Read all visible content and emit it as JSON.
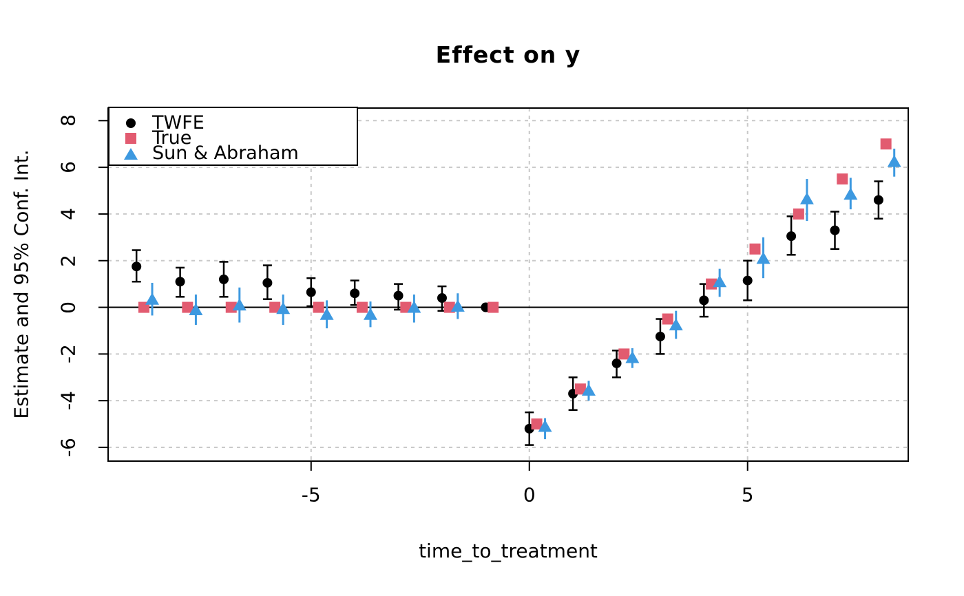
{
  "title": "Effect on y",
  "colors": {
    "grid": "#c9c9c9",
    "axis": "#000000",
    "background": "#ffffff"
  },
  "chart_data": {
    "type": "scatter",
    "title": "Effect on y",
    "xlabel": "time_to_treatment",
    "ylabel": "Estimate and 95% Conf. Int.",
    "xlim": [
      -9.65,
      8.68
    ],
    "ylim": [
      -6.59,
      8.54
    ],
    "xticks": [
      -5,
      0,
      5
    ],
    "yticks": [
      -6,
      -4,
      -2,
      0,
      2,
      4,
      6,
      8
    ],
    "xtick_labels": [
      "-5",
      "0",
      "5"
    ],
    "ytick_labels": [
      "-6",
      "-4",
      "-2",
      "0",
      "2",
      "4",
      "6",
      "8"
    ],
    "grid": true,
    "zero_line": 0,
    "legend_position": "top-left",
    "series": [
      {
        "name": "TWFE",
        "marker": "circle",
        "color": "#000000",
        "x_offset": 0,
        "ci_caps": true,
        "points": [
          {
            "t": -9,
            "est": 1.75,
            "lo": 1.1,
            "hi": 2.45
          },
          {
            "t": -8,
            "est": 1.1,
            "lo": 0.45,
            "hi": 1.7
          },
          {
            "t": -7,
            "est": 1.2,
            "lo": 0.45,
            "hi": 1.95
          },
          {
            "t": -6,
            "est": 1.05,
            "lo": 0.35,
            "hi": 1.8
          },
          {
            "t": -5,
            "est": 0.65,
            "lo": 0.05,
            "hi": 1.25
          },
          {
            "t": -4,
            "est": 0.6,
            "lo": 0.1,
            "hi": 1.15
          },
          {
            "t": -3,
            "est": 0.5,
            "lo": -0.1,
            "hi": 1.0
          },
          {
            "t": -2,
            "est": 0.4,
            "lo": -0.15,
            "hi": 0.9
          },
          {
            "t": -1,
            "est": 0.0
          },
          {
            "t": 0,
            "est": -5.2,
            "lo": -5.9,
            "hi": -4.5
          },
          {
            "t": 1,
            "est": -3.7,
            "lo": -4.4,
            "hi": -3.0
          },
          {
            "t": 2,
            "est": -2.4,
            "lo": -3.0,
            "hi": -1.85
          },
          {
            "t": 3,
            "est": -1.25,
            "lo": -2.0,
            "hi": -0.5
          },
          {
            "t": 4,
            "est": 0.3,
            "lo": -0.4,
            "hi": 1.0
          },
          {
            "t": 5,
            "est": 1.15,
            "lo": 0.3,
            "hi": 2.0
          },
          {
            "t": 6,
            "est": 3.05,
            "lo": 2.25,
            "hi": 3.9
          },
          {
            "t": 7,
            "est": 3.3,
            "lo": 2.5,
            "hi": 4.1
          },
          {
            "t": 8,
            "est": 4.6,
            "lo": 3.8,
            "hi": 5.4
          }
        ]
      },
      {
        "name": "True",
        "marker": "square",
        "color": "#e25b70",
        "x_offset": 0.17,
        "ci_caps": false,
        "points": [
          {
            "t": -9,
            "est": 0
          },
          {
            "t": -8,
            "est": 0
          },
          {
            "t": -7,
            "est": 0
          },
          {
            "t": -6,
            "est": 0
          },
          {
            "t": -5,
            "est": 0
          },
          {
            "t": -4,
            "est": 0
          },
          {
            "t": -3,
            "est": 0
          },
          {
            "t": -2,
            "est": 0
          },
          {
            "t": -1,
            "est": 0
          },
          {
            "t": 0,
            "est": -5.0
          },
          {
            "t": 1,
            "est": -3.5
          },
          {
            "t": 2,
            "est": -2.0
          },
          {
            "t": 3,
            "est": -0.5
          },
          {
            "t": 4,
            "est": 1.0
          },
          {
            "t": 5,
            "est": 2.5
          },
          {
            "t": 6,
            "est": 4.0
          },
          {
            "t": 7,
            "est": 5.5
          },
          {
            "t": 8,
            "est": 7.0
          }
        ]
      },
      {
        "name": "Sun & Abraham",
        "marker": "triangle",
        "color": "#3d99e0",
        "x_offset": 0.36,
        "ci_caps": false,
        "points": [
          {
            "t": -9,
            "est": 0.35,
            "lo": -0.35,
            "hi": 1.05
          },
          {
            "t": -8,
            "est": -0.1,
            "lo": -0.75,
            "hi": 0.55
          },
          {
            "t": -7,
            "est": 0.1,
            "lo": -0.65,
            "hi": 0.85
          },
          {
            "t": -6,
            "est": -0.05,
            "lo": -0.75,
            "hi": 0.55
          },
          {
            "t": -5,
            "est": -0.3,
            "lo": -0.9,
            "hi": 0.3
          },
          {
            "t": -4,
            "est": -0.3,
            "lo": -0.85,
            "hi": 0.25
          },
          {
            "t": -3,
            "est": 0.0,
            "lo": -0.65,
            "hi": 0.55
          },
          {
            "t": -2,
            "est": 0.05,
            "lo": -0.5,
            "hi": 0.6
          },
          {
            "t": 0,
            "est": -5.1,
            "lo": -5.65,
            "hi": -4.75
          },
          {
            "t": 1,
            "est": -3.55,
            "lo": -4.0,
            "hi": -3.15
          },
          {
            "t": 2,
            "est": -2.15,
            "lo": -2.6,
            "hi": -1.75
          },
          {
            "t": 3,
            "est": -0.75,
            "lo": -1.35,
            "hi": -0.15
          },
          {
            "t": 4,
            "est": 1.1,
            "lo": 0.45,
            "hi": 1.65
          },
          {
            "t": 5,
            "est": 2.1,
            "lo": 1.25,
            "hi": 3.0
          },
          {
            "t": 6,
            "est": 4.65,
            "lo": 3.7,
            "hi": 5.5
          },
          {
            "t": 7,
            "est": 4.85,
            "lo": 4.2,
            "hi": 5.55
          },
          {
            "t": 8,
            "est": 6.25,
            "lo": 5.6,
            "hi": 6.8
          }
        ]
      }
    ]
  }
}
